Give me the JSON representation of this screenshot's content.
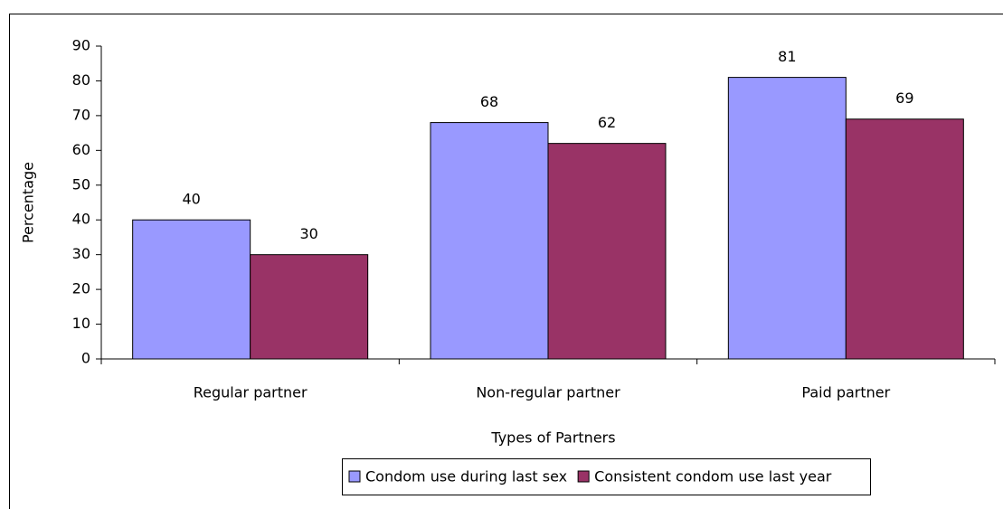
{
  "chart_data": {
    "type": "bar",
    "categories": [
      "Regular partner",
      "Non-regular partner",
      "Paid partner"
    ],
    "series": [
      {
        "name": "Condom use during last sex",
        "color": "#9999ff",
        "values": [
          40,
          68,
          81
        ]
      },
      {
        "name": "Consistent condom use last year",
        "color": "#993366",
        "values": [
          30,
          62,
          69
        ]
      }
    ],
    "ylim": [
      0,
      90
    ],
    "yticks": [
      0,
      10,
      20,
      30,
      40,
      50,
      60,
      70,
      80,
      90
    ],
    "y_label": "Percentage",
    "x_label": "Types of Partners",
    "legend": "bottom"
  }
}
